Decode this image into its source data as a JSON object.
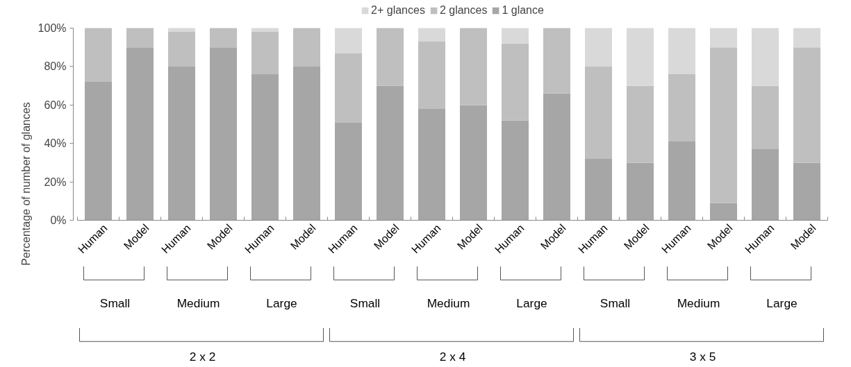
{
  "chart_data": {
    "type": "bar",
    "stacked": true,
    "ylabel": "Percentage of number of glances",
    "categories": [
      "Human",
      "Model",
      "Human",
      "Model",
      "Human",
      "Model",
      "Human",
      "Model",
      "Human",
      "Model",
      "Human",
      "Model",
      "Human",
      "Model",
      "Human",
      "Model",
      "Human",
      "Model"
    ],
    "series": [
      {
        "name": "1 glance",
        "color": "#a6a6a6",
        "values": [
          72,
          90,
          80,
          90,
          76,
          80,
          51,
          70,
          58,
          60,
          52,
          66,
          32,
          30,
          41,
          9,
          37,
          30
        ]
      },
      {
        "name": "2 glances",
        "color": "#bfbfbf",
        "values": [
          28,
          10,
          18,
          10,
          22,
          20,
          36,
          30,
          35,
          40,
          40,
          34,
          48,
          40,
          35,
          81,
          33,
          60
        ]
      },
      {
        "name": "2+ glances",
        "color": "#d9d9d9",
        "values": [
          0,
          0,
          2,
          0,
          2,
          0,
          13,
          0,
          7,
          0,
          8,
          0,
          20,
          30,
          24,
          10,
          30,
          10
        ]
      }
    ],
    "ylim": [
      0,
      100
    ],
    "yticks": [
      {
        "value": 0,
        "label": "0%"
      },
      {
        "value": 20,
        "label": "20%"
      },
      {
        "value": 40,
        "label": "40%"
      },
      {
        "value": 60,
        "label": "60%"
      },
      {
        "value": 80,
        "label": "80%"
      },
      {
        "value": 100,
        "label": "100%"
      }
    ],
    "grid": false,
    "legend": "top",
    "annotations": [
      "Small",
      "Medium",
      "Large",
      "Small",
      "Medium",
      "Large",
      "Small",
      "Medium",
      "Large",
      "2 x 2",
      "2 x 4",
      "3 x 5"
    ]
  }
}
